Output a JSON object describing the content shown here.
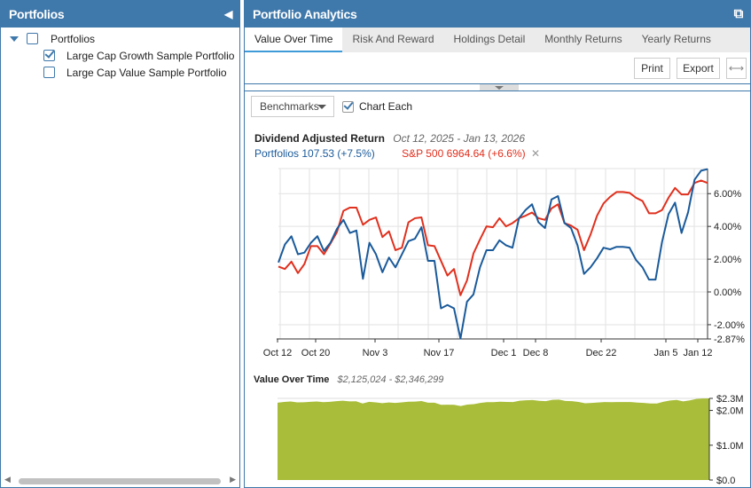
{
  "left_panel": {
    "title": "Portfolios",
    "collapse_icon": "triangle-left-icon",
    "tree": [
      {
        "label": "Portfolios",
        "checked": false,
        "expanded": true
      },
      {
        "label": "Large Cap Growth Sample Portfolio",
        "checked": true
      },
      {
        "label": "Large Cap Value Sample Portfolio",
        "checked": false
      }
    ]
  },
  "right_panel": {
    "title": "Portfolio Analytics",
    "popout_icon": "external-link-icon",
    "tabs": [
      "Value Over Time",
      "Risk And Reward",
      "Holdings Detail",
      "Monthly Returns",
      "Yearly Returns"
    ],
    "active_tab": "Value Over Time",
    "toolbar": {
      "print": "Print",
      "export": "Export",
      "expand_icon": "horizontal-arrows-icon"
    },
    "benchmarks_label": "Benchmarks",
    "chart_each_label": "Chart Each",
    "chart_each_checked": true
  },
  "colors": {
    "header": "#3f78aa",
    "portfolio": "#1a5a9a",
    "benchmark": "#e0301e",
    "area": "#a9bd3a"
  },
  "chart_data": [
    {
      "type": "line",
      "title": "Dividend Adjusted Return",
      "subtitle": "Oct 12, 2025 - Jan 13, 2026",
      "x_ticks": [
        "Oct 12",
        "Oct 20",
        "Nov 3",
        "Nov 17",
        "Dec 1",
        "Dec 8",
        "Dec 22",
        "Jan 5",
        "Jan 12"
      ],
      "y_ticks": [
        "6.00%",
        "4.00%",
        "2.00%",
        "0.00%",
        "-2.00%",
        "-2.87%"
      ],
      "ylim": [
        -2.87,
        7.53
      ],
      "grid": true,
      "series": [
        {
          "name": "Portfolios",
          "legend": "Portfolios 107.53 (+7.5%)",
          "values": [
            1.8,
            2.9,
            3.4,
            2.3,
            2.4,
            3.0,
            3.4,
            2.5,
            3.0,
            3.85,
            4.4,
            3.6,
            3.75,
            0.8,
            3.0,
            2.3,
            1.2,
            2.1,
            1.5,
            2.3,
            3.1,
            3.25,
            3.95,
            1.9,
            1.9,
            -1.0,
            -0.8,
            -1.0,
            -2.85,
            -0.6,
            -0.15,
            1.5,
            2.55,
            2.55,
            3.15,
            2.85,
            2.7,
            4.5,
            5.0,
            5.35,
            4.25,
            3.9,
            5.65,
            5.85,
            4.2,
            3.9,
            2.85,
            1.1,
            1.5,
            2.05,
            2.7,
            2.6,
            2.75,
            2.75,
            2.7,
            1.95,
            1.5,
            0.75,
            0.75,
            3.05,
            4.75,
            5.45,
            3.6,
            4.85,
            6.85,
            7.4,
            7.5
          ]
        },
        {
          "name": "S&P 500",
          "legend": "S&P 500 6964.64 (+6.6%)",
          "removable": true,
          "values": [
            1.55,
            1.4,
            1.85,
            1.15,
            1.7,
            2.8,
            2.8,
            2.3,
            2.95,
            3.65,
            4.95,
            5.15,
            5.15,
            4.1,
            4.4,
            4.55,
            3.35,
            3.7,
            2.55,
            2.7,
            4.25,
            4.5,
            4.55,
            2.85,
            2.8,
            1.9,
            1.0,
            1.4,
            -0.2,
            0.7,
            2.35,
            3.2,
            4.0,
            3.95,
            4.5,
            4.0,
            4.2,
            4.5,
            4.65,
            4.85,
            4.5,
            4.4,
            5.1,
            5.35,
            4.2,
            4.05,
            3.8,
            2.55,
            3.5,
            4.65,
            5.4,
            5.8,
            6.1,
            6.1,
            6.05,
            5.75,
            5.55,
            4.8,
            4.8,
            5.0,
            5.75,
            6.35,
            5.95,
            5.95,
            6.65,
            6.8,
            6.65
          ]
        }
      ]
    },
    {
      "type": "area",
      "title": "Value Over Time",
      "subtitle": "$2,125,024 - $2,346,299",
      "y_ticks": [
        "$2.3M",
        "$2.0M",
        "$1.0M",
        "$0.0"
      ],
      "ylim_millions": [
        0,
        2.346
      ],
      "values_millions": [
        2.221,
        2.245,
        2.256,
        2.232,
        2.234,
        2.247,
        2.256,
        2.237,
        2.247,
        2.266,
        2.278,
        2.26,
        2.264,
        2.199,
        2.247,
        2.232,
        2.208,
        2.228,
        2.215,
        2.232,
        2.25,
        2.253,
        2.268,
        2.223,
        2.223,
        2.16,
        2.165,
        2.16,
        2.125,
        2.169,
        2.179,
        2.215,
        2.238,
        2.238,
        2.251,
        2.244,
        2.241,
        2.28,
        2.291,
        2.299,
        2.275,
        2.267,
        2.305,
        2.31,
        2.274,
        2.267,
        2.244,
        2.206,
        2.215,
        2.227,
        2.241,
        2.239,
        2.242,
        2.242,
        2.241,
        2.225,
        2.215,
        2.198,
        2.198,
        2.249,
        2.286,
        2.301,
        2.26,
        2.288,
        2.331,
        2.343,
        2.346
      ]
    }
  ]
}
